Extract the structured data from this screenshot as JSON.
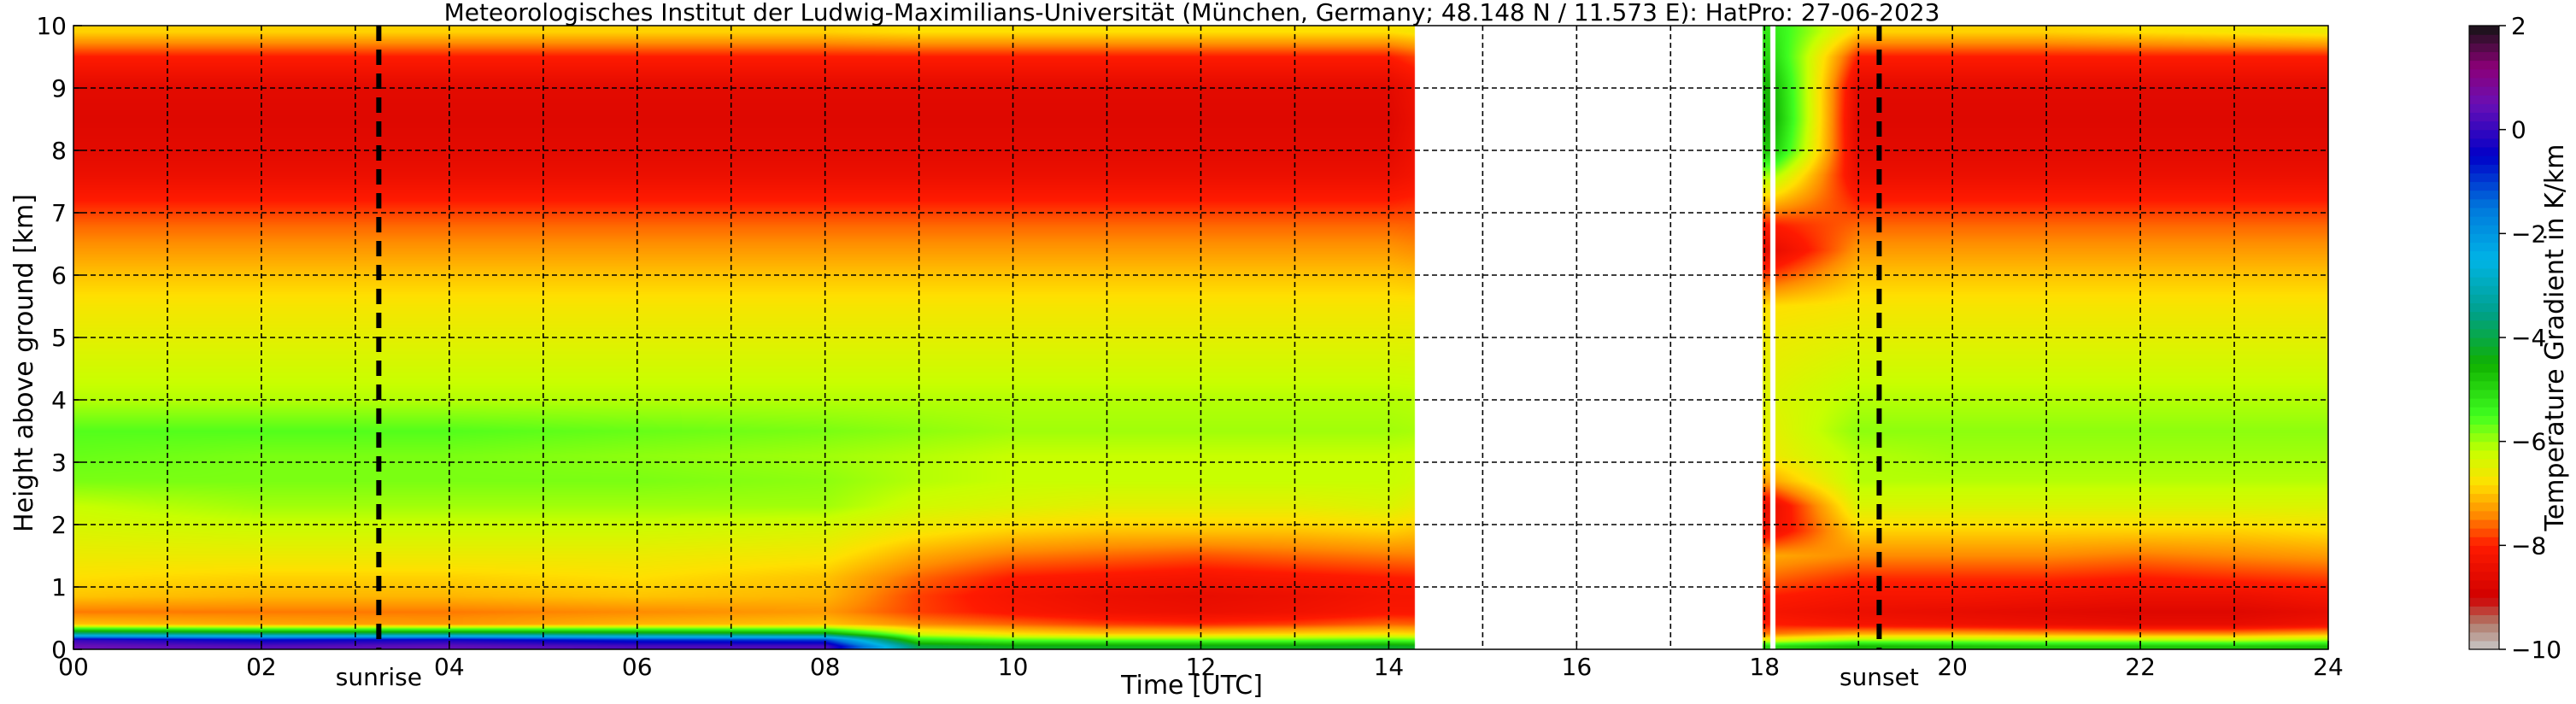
{
  "chart_data": {
    "type": "heatmap",
    "title": "Meteorologisches Institut der Ludwig-Maximilians-Universität (München, Germany; 48.148 N / 11.573 E):    HatPro: 27-06-2023",
    "xlabel": "Time [UTC]",
    "ylabel": "Height above ground [km]",
    "xlim": [
      0,
      24
    ],
    "ylim": [
      0,
      10
    ],
    "x_ticks": [
      0,
      2,
      4,
      6,
      8,
      10,
      12,
      14,
      16,
      18,
      20,
      22,
      24
    ],
    "x_tick_labels": [
      "00",
      "02",
      "04",
      "06",
      "08",
      "10",
      "12",
      "14",
      "16",
      "18",
      "20",
      "22",
      "24"
    ],
    "y_ticks": [
      0,
      1,
      2,
      3,
      4,
      5,
      6,
      7,
      8,
      9,
      10
    ],
    "y_tick_labels": [
      "0",
      "1",
      "2",
      "3",
      "4",
      "5",
      "6",
      "7",
      "8",
      "9",
      "10"
    ],
    "grid": true,
    "colorbar": {
      "label": "Temperature Gradient in K/km",
      "range": [
        -10,
        2
      ],
      "ticks": [
        2,
        0,
        -2,
        -4,
        -6,
        -8,
        -10
      ],
      "tick_labels": [
        "2",
        "0",
        "−2",
        "−4",
        "−6",
        "−8",
        "−10"
      ],
      "colors": [
        {
          "value": -10,
          "color": "#c8c8c8"
        },
        {
          "value": -9.5,
          "color": "#b07a6a"
        },
        {
          "value": -9,
          "color": "#d00000"
        },
        {
          "value": -8,
          "color": "#ff1a00"
        },
        {
          "value": -7.4,
          "color": "#ff8c00"
        },
        {
          "value": -6.8,
          "color": "#ffe000"
        },
        {
          "value": -6.2,
          "color": "#c8ff00"
        },
        {
          "value": -5.5,
          "color": "#40ff20"
        },
        {
          "value": -4.5,
          "color": "#10b000"
        },
        {
          "value": -3.5,
          "color": "#00a08c"
        },
        {
          "value": -2.5,
          "color": "#00b4e6"
        },
        {
          "value": -1.5,
          "color": "#0078dc"
        },
        {
          "value": -0.5,
          "color": "#0000c8"
        },
        {
          "value": 0.5,
          "color": "#6a0fb4"
        },
        {
          "value": 1.2,
          "color": "#8c0078"
        },
        {
          "value": 2,
          "color": "#141414"
        }
      ]
    },
    "data_segments": [
      {
        "start": 0,
        "end": 14.28
      },
      {
        "start": 17.98,
        "end": 18.06
      },
      {
        "start": 18.12,
        "end": 24
      }
    ],
    "vertical_lines": [
      {
        "x": 3.25,
        "label": "sunrise"
      },
      {
        "x": 19.22,
        "label": "sunset"
      }
    ],
    "profile_heights_km": [
      0.05,
      0.15,
      0.25,
      0.4,
      0.6,
      0.85,
      1.15,
      1.5,
      1.9,
      2.3,
      2.7,
      3.1,
      3.5,
      4.0,
      4.5,
      5.0,
      5.5,
      6.0,
      6.4,
      6.8,
      7.2,
      7.6,
      8.0,
      8.5,
      9.0,
      9.5,
      9.9
    ],
    "profile_times_utc": [
      0,
      2,
      4,
      6,
      8,
      9,
      10,
      11,
      12,
      13,
      14,
      18.1,
      19,
      20,
      21,
      22,
      23,
      24
    ],
    "gradient_K_per_km": [
      [
        0.5,
        0.0,
        -3.5,
        -7.0,
        -7.5,
        -7.0,
        -6.8,
        -6.6,
        -6.4,
        -6.2,
        -5.8,
        -5.7,
        -5.6,
        -6.1,
        -6.3,
        -6.5,
        -6.7,
        -7.0,
        -7.3,
        -7.6,
        -8.0,
        -8.4,
        -8.6,
        -8.7,
        -8.6,
        -8.0,
        -6.9
      ],
      [
        0.3,
        -0.5,
        -3.8,
        -7.2,
        -7.5,
        -7.1,
        -6.9,
        -6.6,
        -6.3,
        -6.0,
        -5.8,
        -5.8,
        -5.6,
        -6.1,
        -6.3,
        -6.5,
        -6.7,
        -7.0,
        -7.3,
        -7.6,
        -8.0,
        -8.4,
        -8.6,
        -8.7,
        -8.6,
        -8.0,
        -6.9
      ],
      [
        0.4,
        -0.3,
        -3.8,
        -7.3,
        -7.5,
        -7.1,
        -6.9,
        -6.6,
        -6.3,
        -6.0,
        -5.8,
        -5.8,
        -5.6,
        -6.1,
        -6.3,
        -6.5,
        -6.7,
        -7.0,
        -7.3,
        -7.6,
        -8.0,
        -8.4,
        -8.6,
        -8.7,
        -8.6,
        -8.0,
        -6.9
      ],
      [
        0.2,
        -0.8,
        -4.0,
        -7.1,
        -7.4,
        -7.0,
        -6.8,
        -6.6,
        -6.3,
        -6.0,
        -5.8,
        -5.9,
        -5.7,
        -6.1,
        -6.3,
        -6.5,
        -6.7,
        -7.0,
        -7.3,
        -7.6,
        -8.0,
        -8.4,
        -8.6,
        -8.7,
        -8.6,
        -8.0,
        -6.9
      ],
      [
        0.2,
        -1.0,
        -4.2,
        -7.0,
        -7.3,
        -7.1,
        -7.0,
        -6.7,
        -6.4,
        -6.0,
        -5.9,
        -6.0,
        -5.8,
        -6.1,
        -6.3,
        -6.5,
        -6.7,
        -7.0,
        -7.3,
        -7.6,
        -8.0,
        -8.4,
        -8.6,
        -8.7,
        -8.6,
        -8.0,
        -6.9
      ],
      [
        -4.0,
        -5.2,
        -6.4,
        -7.4,
        -7.8,
        -7.8,
        -7.6,
        -7.2,
        -6.7,
        -6.3,
        -6.1,
        -6.1,
        -5.9,
        -6.1,
        -6.3,
        -6.5,
        -6.7,
        -7.0,
        -7.3,
        -7.6,
        -8.0,
        -8.4,
        -8.6,
        -8.7,
        -8.6,
        -8.0,
        -6.8
      ],
      [
        -4.3,
        -5.6,
        -6.8,
        -7.6,
        -8.1,
        -8.2,
        -8.0,
        -7.5,
        -6.9,
        -6.4,
        -6.2,
        -6.2,
        -6.0,
        -6.1,
        -6.3,
        -6.5,
        -6.7,
        -7.0,
        -7.3,
        -7.6,
        -8.0,
        -8.4,
        -8.6,
        -8.7,
        -8.6,
        -8.0,
        -6.8
      ],
      [
        -4.3,
        -5.7,
        -7.0,
        -7.8,
        -8.3,
        -8.4,
        -8.1,
        -7.6,
        -7.0,
        -6.5,
        -6.2,
        -6.2,
        -6.0,
        -6.1,
        -6.3,
        -6.5,
        -6.7,
        -7.0,
        -7.3,
        -7.6,
        -8.0,
        -8.4,
        -8.6,
        -8.7,
        -8.6,
        -8.0,
        -6.8
      ],
      [
        -4.3,
        -5.7,
        -7.0,
        -7.9,
        -8.4,
        -8.5,
        -8.2,
        -7.7,
        -7.0,
        -6.5,
        -6.2,
        -6.2,
        -6.0,
        -6.1,
        -6.3,
        -6.5,
        -6.7,
        -7.0,
        -7.3,
        -7.6,
        -8.0,
        -8.4,
        -8.6,
        -8.7,
        -8.6,
        -8.0,
        -6.8
      ],
      [
        -4.3,
        -5.7,
        -6.9,
        -7.8,
        -8.3,
        -8.4,
        -8.1,
        -7.6,
        -7.0,
        -6.5,
        -6.2,
        -6.2,
        -6.0,
        -6.1,
        -6.3,
        -6.5,
        -6.7,
        -7.0,
        -7.3,
        -7.6,
        -8.0,
        -8.4,
        -8.6,
        -8.7,
        -8.6,
        -8.0,
        -6.8
      ],
      [
        -4.2,
        -5.6,
        -6.8,
        -7.6,
        -8.1,
        -8.2,
        -8.0,
        -7.5,
        -6.9,
        -6.4,
        -6.2,
        -6.2,
        -6.0,
        -6.1,
        -6.3,
        -6.5,
        -6.7,
        -7.0,
        -7.3,
        -7.6,
        -8.0,
        -8.4,
        -8.6,
        -8.7,
        -8.6,
        -8.0,
        -6.8
      ],
      [
        -5.0,
        -6.5,
        -7.5,
        -8.0,
        -8.2,
        -8.0,
        -7.6,
        -7.2,
        -8.3,
        -8.4,
        -7.2,
        -6.6,
        -6.5,
        -6.4,
        -6.5,
        -6.6,
        -6.8,
        -7.8,
        -8.5,
        -8.0,
        -7.0,
        -6.0,
        -4.8,
        -4.5,
        -4.6,
        -5.0,
        -5.2
      ],
      [
        -4.6,
        -6.0,
        -7.2,
        -8.2,
        -8.4,
        -8.2,
        -7.9,
        -7.4,
        -6.9,
        -6.4,
        -6.1,
        -6.1,
        -5.9,
        -6.1,
        -6.3,
        -6.5,
        -6.7,
        -7.0,
        -7.3,
        -7.6,
        -8.0,
        -8.4,
        -8.6,
        -8.7,
        -8.6,
        -8.0,
        -6.9
      ],
      [
        -4.7,
        -6.0,
        -7.2,
        -8.3,
        -8.5,
        -8.2,
        -7.9,
        -7.4,
        -6.9,
        -6.4,
        -6.1,
        -6.0,
        -5.9,
        -6.1,
        -6.3,
        -6.5,
        -6.7,
        -7.0,
        -7.3,
        -7.6,
        -8.0,
        -8.4,
        -8.6,
        -8.7,
        -8.6,
        -8.0,
        -6.9
      ],
      [
        -4.8,
        -6.1,
        -7.3,
        -8.4,
        -8.6,
        -8.3,
        -7.9,
        -7.4,
        -6.9,
        -6.4,
        -6.1,
        -6.0,
        -5.9,
        -6.1,
        -6.3,
        -6.5,
        -6.7,
        -7.0,
        -7.3,
        -7.6,
        -8.0,
        -8.4,
        -8.6,
        -8.7,
        -8.6,
        -8.0,
        -6.9
      ],
      [
        -4.8,
        -6.1,
        -7.4,
        -8.5,
        -8.7,
        -8.4,
        -8.0,
        -7.5,
        -6.9,
        -6.4,
        -6.1,
        -6.0,
        -5.9,
        -6.1,
        -6.3,
        -6.5,
        -6.7,
        -7.0,
        -7.3,
        -7.6,
        -8.0,
        -8.4,
        -8.6,
        -8.7,
        -8.6,
        -8.0,
        -6.8
      ],
      [
        -4.8,
        -6.2,
        -7.4,
        -8.5,
        -8.7,
        -8.4,
        -7.9,
        -7.4,
        -6.9,
        -6.4,
        -6.1,
        -6.0,
        -5.9,
        -6.1,
        -6.3,
        -6.5,
        -6.7,
        -7.0,
        -7.3,
        -7.6,
        -8.0,
        -8.4,
        -8.6,
        -8.7,
        -8.6,
        -8.0,
        -6.7
      ],
      [
        -4.7,
        -6.0,
        -7.2,
        -8.3,
        -8.5,
        -8.2,
        -7.8,
        -7.3,
        -6.8,
        -6.4,
        -6.1,
        -6.0,
        -5.9,
        -6.1,
        -6.3,
        -6.5,
        -6.7,
        -7.0,
        -7.3,
        -7.6,
        -8.0,
        -8.4,
        -8.6,
        -8.7,
        -8.6,
        -8.0,
        -6.6
      ]
    ]
  }
}
